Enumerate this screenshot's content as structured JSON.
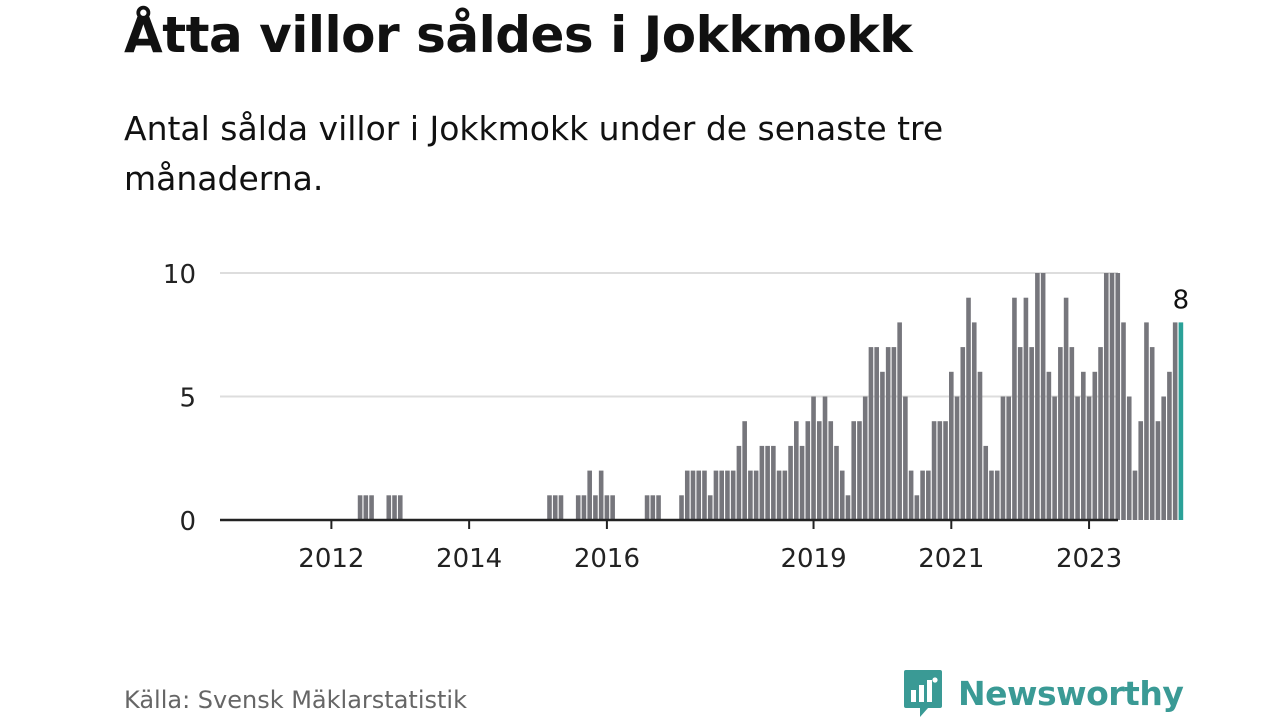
{
  "title": "Åtta villor såldes i Jokkmokk",
  "subtitle": "Antal sålda villor i Jokkmokk under de senaste tre månaderna.",
  "source": "Källa: Svensk Mäklarstatistik",
  "brand": "Newsworthy",
  "colors": {
    "bar": "#76767c",
    "highlight": "#2aa198",
    "grid": "#dddddd",
    "axis": "#222222",
    "brand": "#3a9a95"
  },
  "chart_data": {
    "type": "bar",
    "title": "Åtta villor såldes i Jokkmokk",
    "xlabel": "",
    "ylabel": "",
    "ylim": [
      0,
      10
    ],
    "yticks": [
      0,
      5,
      10
    ],
    "grid": true,
    "x_start": "2011-01",
    "xticks": [
      {
        "label": "2012",
        "index": 12
      },
      {
        "label": "2014",
        "index": 36
      },
      {
        "label": "2016",
        "index": 60
      },
      {
        "label": "2019",
        "index": 96
      },
      {
        "label": "2021",
        "index": 120
      },
      {
        "label": "2023",
        "index": 144
      }
    ],
    "values": [
      0,
      0,
      0,
      0,
      0,
      0,
      0,
      0,
      0,
      0,
      0,
      0,
      0,
      0,
      0,
      0,
      0,
      1,
      1,
      1,
      0,
      0,
      1,
      1,
      1,
      0,
      0,
      0,
      0,
      0,
      0,
      0,
      0,
      0,
      0,
      0,
      0,
      0,
      0,
      0,
      0,
      0,
      0,
      0,
      0,
      0,
      0,
      0,
      0,
      0,
      1,
      1,
      1,
      0,
      0,
      1,
      1,
      2,
      1,
      2,
      1,
      1,
      0,
      0,
      0,
      0,
      0,
      1,
      1,
      1,
      0,
      0,
      0,
      1,
      2,
      2,
      2,
      2,
      1,
      2,
      2,
      2,
      2,
      3,
      4,
      2,
      2,
      3,
      3,
      3,
      2,
      2,
      3,
      4,
      3,
      4,
      5,
      4,
      5,
      4,
      3,
      2,
      1,
      4,
      4,
      5,
      7,
      7,
      6,
      7,
      7,
      8,
      5,
      2,
      1,
      2,
      2,
      4,
      4,
      4,
      6,
      5,
      7,
      9,
      8,
      6,
      3,
      2,
      2,
      5,
      5,
      9,
      7,
      9,
      7,
      10,
      10,
      6,
      5,
      7,
      9,
      7,
      5,
      6,
      5,
      6,
      7,
      10,
      10,
      10,
      8,
      5,
      2,
      4,
      8,
      7,
      4,
      5,
      6,
      8,
      8
    ],
    "highlight_label": "8"
  }
}
